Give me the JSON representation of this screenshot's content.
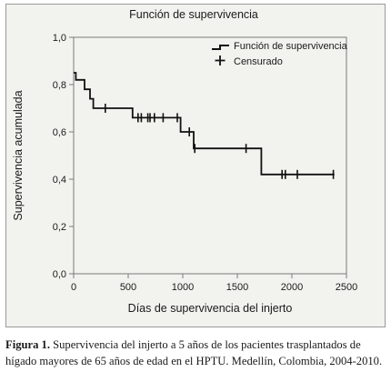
{
  "chart_data": {
    "type": "line",
    "title": "Función de supervivencia",
    "xlabel": "Días de supervivencia del injerto",
    "ylabel": "Supervivencia acumulada",
    "xlim": [
      0,
      2500
    ],
    "ylim": [
      0,
      1
    ],
    "x_ticks": [
      0,
      500,
      1000,
      1500,
      2000,
      2500
    ],
    "x_tick_labels": [
      "0",
      "500",
      "1000",
      "1500",
      "2000",
      "2500"
    ],
    "y_ticks": [
      0,
      0.2,
      0.4,
      0.6,
      0.8,
      1.0
    ],
    "y_tick_labels": [
      "0,0",
      "0,2",
      "0,4",
      "0,6",
      "0,8",
      "1,0"
    ],
    "grid": false,
    "legend_position": "top-right",
    "series": [
      {
        "name": "Función de supervivencia",
        "type": "step",
        "color": "#111111",
        "x": [
          0,
          20,
          100,
          150,
          180,
          230,
          540,
          980,
          1100,
          1720,
          2390
        ],
        "y": [
          0.85,
          0.82,
          0.78,
          0.74,
          0.7,
          0.7,
          0.66,
          0.6,
          0.53,
          0.42,
          0.42
        ]
      },
      {
        "name": "Censurado",
        "type": "censor-marks",
        "color": "#111111",
        "x": [
          290,
          590,
          620,
          680,
          700,
          740,
          820,
          950,
          1060,
          1110,
          1580,
          1910,
          1940,
          2050,
          2380
        ],
        "y": [
          0.7,
          0.66,
          0.66,
          0.66,
          0.66,
          0.66,
          0.66,
          0.66,
          0.6,
          0.53,
          0.53,
          0.42,
          0.42,
          0.42,
          0.42
        ]
      }
    ]
  },
  "caption": {
    "label": "Figura 1.",
    "text": " Supervivencia del injerto a 5 años de los pacientes trasplantados de hígado mayores de 65 años de edad en el HPTU. Medellín, Colombia, 2004-2010."
  },
  "colors": {
    "plot_background": "#f2f2ee",
    "line": "#111111"
  }
}
